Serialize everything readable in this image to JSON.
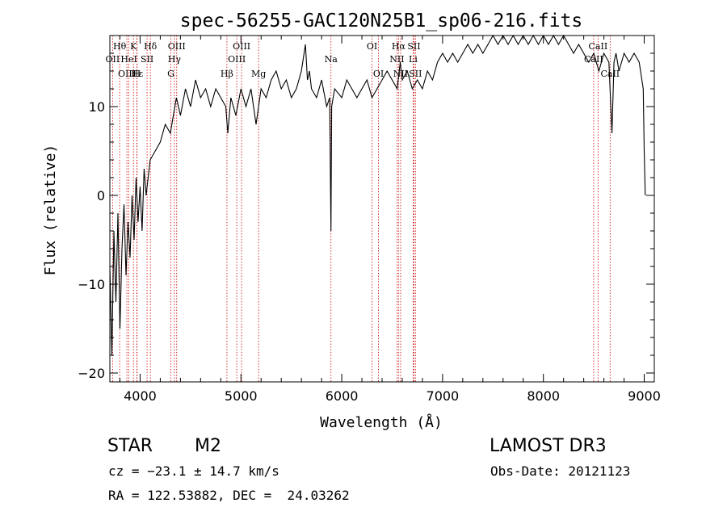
{
  "chart_data": {
    "type": "line",
    "title": "spec-56255-GAC120N25B1_sp06-216.fits",
    "xlabel": "Wavelength (Å)",
    "ylabel": "Flux (relative)",
    "xlim": [
      3700,
      9100
    ],
    "ylim": [
      -21,
      18
    ],
    "xticks": [
      4000,
      5000,
      6000,
      7000,
      8000,
      9000
    ],
    "yticks": [
      -20,
      -10,
      0,
      10
    ],
    "xtick_labels": [
      "4000",
      "5000",
      "6000",
      "7000",
      "8000",
      "9000"
    ],
    "ytick_labels": [
      "−20",
      "−10",
      "0",
      "10"
    ],
    "grid": false,
    "line_color": "#000000",
    "marker_color": "#cc0000",
    "series": [
      {
        "x": [
          3700,
          3720,
          3740,
          3760,
          3780,
          3800,
          3820,
          3840,
          3860,
          3880,
          3900,
          3920,
          3940,
          3960,
          3980,
          4000,
          4020,
          4040,
          4060,
          4080,
          4100,
          4150,
          4200,
          4250,
          4300,
          4330,
          4360,
          4400,
          4450,
          4500,
          4550,
          4600,
          4650,
          4700,
          4750,
          4800,
          4850,
          4870,
          4900,
          4950,
          5000,
          5050,
          5100,
          5150,
          5200,
          5250,
          5300,
          5350,
          5400,
          5450,
          5500,
          5550,
          5600,
          5640,
          5660,
          5680,
          5700,
          5750,
          5800,
          5850,
          5880,
          5893,
          5900,
          5930,
          6000,
          6050,
          6100,
          6150,
          6200,
          6250,
          6300,
          6350,
          6400,
          6450,
          6500,
          6550,
          6580,
          6600,
          6650,
          6700,
          6750,
          6800,
          6850,
          6900,
          6950,
          7000,
          7050,
          7100,
          7150,
          7200,
          7250,
          7300,
          7350,
          7400,
          7450,
          7500,
          7550,
          7600,
          7650,
          7700,
          7750,
          7800,
          7850,
          7900,
          7950,
          8000,
          8050,
          8100,
          8150,
          8200,
          8250,
          8300,
          8350,
          8400,
          8450,
          8500,
          8550,
          8600,
          8650,
          8680,
          8700,
          8720,
          8750,
          8800,
          8850,
          8900,
          8950,
          8990,
          9000,
          9010
        ],
        "y": [
          -8,
          -18,
          -4,
          -12,
          -2,
          -15,
          -6,
          -1,
          -9,
          -3,
          -7,
          0,
          -5,
          2,
          -3,
          1,
          -4,
          3,
          0,
          2,
          4,
          5,
          6,
          8,
          7,
          9,
          11,
          9,
          12,
          10,
          13,
          11,
          12,
          10,
          12,
          11,
          10,
          7,
          11,
          9,
          12,
          10,
          12,
          8,
          12,
          11,
          13,
          14,
          12,
          13,
          11,
          12,
          14,
          17,
          13,
          14,
          12,
          11,
          13,
          10,
          11,
          -4,
          10,
          12,
          11,
          13,
          12,
          11,
          12,
          13,
          11,
          12,
          13,
          14,
          13,
          12,
          15,
          13,
          14,
          12,
          13,
          12,
          14,
          13,
          15,
          16,
          15,
          16,
          15,
          16,
          17,
          16,
          17,
          16,
          17,
          18,
          17,
          18,
          17,
          18,
          17,
          18,
          17,
          18,
          17,
          18,
          17,
          18,
          17,
          18,
          17,
          16,
          17,
          16,
          15,
          16,
          14,
          16,
          15,
          7,
          15,
          16,
          14,
          16,
          15,
          16,
          15,
          12,
          5,
          0
        ]
      }
    ],
    "line_markers": [
      {
        "label": "H&#952;",
        "x": 3797,
        "row": 1
      },
      {
        "label": "K",
        "x": 3934,
        "row": 1
      },
      {
        "label": "H&#948;",
        "x": 4102,
        "row": 1
      },
      {
        "label": "OIII",
        "x": 4363,
        "row": 1
      },
      {
        "label": "OIII",
        "x": 5007,
        "row": 1
      },
      {
        "label": "OI",
        "x": 6300,
        "row": 1
      },
      {
        "label": "H&#945;",
        "x": 6563,
        "row": 1
      },
      {
        "label": "SII",
        "x": 6716,
        "row": 1
      },
      {
        "label": "CaII",
        "x": 8542,
        "row": 1
      },
      {
        "label": "OII",
        "x": 3727,
        "row": 2
      },
      {
        "label": "HeI",
        "x": 3889,
        "row": 2
      },
      {
        "label": "SII",
        "x": 4069,
        "row": 2
      },
      {
        "label": "H&#947;",
        "x": 4340,
        "row": 2
      },
      {
        "label": "OIII",
        "x": 4959,
        "row": 2
      },
      {
        "label": "Na",
        "x": 5893,
        "row": 2
      },
      {
        "label": "NII",
        "x": 6548,
        "row": 2
      },
      {
        "label": "Li",
        "x": 6708,
        "row": 2
      },
      {
        "label": "CaII",
        "x": 8498,
        "row": 2
      },
      {
        "label": "OIII",
        "x": 3869,
        "row": 3
      },
      {
        "label": "H&#949;",
        "x": 3970,
        "row": 3
      },
      {
        "label": "H",
        "x": 3968,
        "row": 3
      },
      {
        "label": "G",
        "x": 4305,
        "row": 3
      },
      {
        "label": "H&#946;",
        "x": 4861,
        "row": 3
      },
      {
        "label": "Mg",
        "x": 5175,
        "row": 3
      },
      {
        "label": "OI",
        "x": 6364,
        "row": 3
      },
      {
        "label": "NII",
        "x": 6584,
        "row": 3
      },
      {
        "label": "SII",
        "x": 6731,
        "row": 3
      },
      {
        "label": "CaII",
        "x": 8662,
        "row": 3
      }
    ]
  },
  "info": {
    "object_class": "STAR",
    "subclass": "M2",
    "survey": "LAMOST DR3",
    "redshift_line": "cz = −23.1 ± 14.7 km/s",
    "obs_date_line": "Obs-Date: 20121123",
    "coords_line": "RA = 122.53882, DEC =  24.03262"
  }
}
